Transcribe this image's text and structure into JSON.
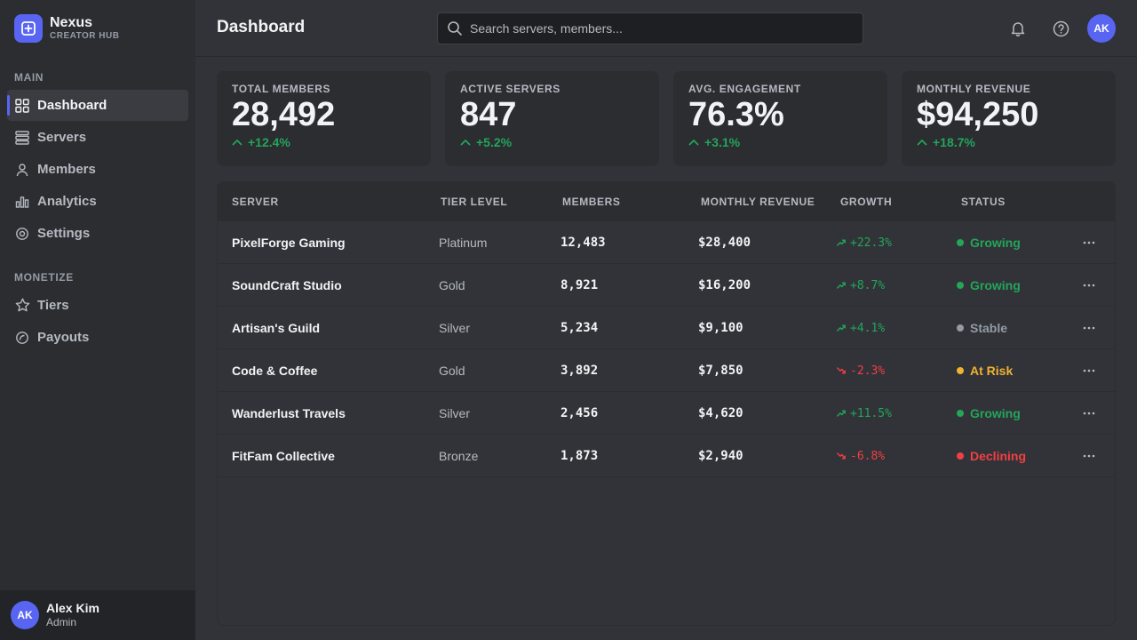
{
  "brand": {
    "name": "Nexus",
    "subtitle": "CREATOR HUB"
  },
  "sidebar": {
    "sections": [
      {
        "title": "MAIN",
        "items": [
          {
            "label": "Dashboard",
            "icon": "grid-icon",
            "active": true
          },
          {
            "label": "Servers",
            "icon": "server-icon"
          },
          {
            "label": "Members",
            "icon": "user-icon"
          },
          {
            "label": "Analytics",
            "icon": "bar-chart-icon"
          },
          {
            "label": "Settings",
            "icon": "gear-icon"
          }
        ]
      },
      {
        "title": "MONETIZE",
        "items": [
          {
            "label": "Tiers",
            "icon": "star-icon"
          },
          {
            "label": "Payouts",
            "icon": "payout-icon"
          }
        ]
      }
    ]
  },
  "user": {
    "initials": "AK",
    "name": "Alex Kim",
    "role": "Admin"
  },
  "header": {
    "title": "Dashboard",
    "search_placeholder": "Search servers, members...",
    "avatar_initials": "AK"
  },
  "stats": [
    {
      "label": "TOTAL MEMBERS",
      "value": "28,492",
      "change": "+12.4%"
    },
    {
      "label": "ACTIVE SERVERS",
      "value": "847",
      "change": "+5.2%"
    },
    {
      "label": "AVG. ENGAGEMENT",
      "value": "76.3%",
      "change": "+3.1%"
    },
    {
      "label": "MONTHLY REVENUE",
      "value": "$94,250",
      "change": "+18.7%"
    }
  ],
  "table": {
    "columns": [
      "SERVER",
      "TIER LEVEL",
      "MEMBERS",
      "MONTHLY REVENUE",
      "GROWTH",
      "STATUS"
    ],
    "rows": [
      {
        "server": "PixelForge Gaming",
        "tier": "Platinum",
        "members": "12,483",
        "revenue": "$28,400",
        "growth": "+22.3%",
        "trend": "up",
        "status": "Growing"
      },
      {
        "server": "SoundCraft Studio",
        "tier": "Gold",
        "members": "8,921",
        "revenue": "$16,200",
        "growth": "+8.7%",
        "trend": "up",
        "status": "Growing"
      },
      {
        "server": "Artisan's Guild",
        "tier": "Silver",
        "members": "5,234",
        "revenue": "$9,100",
        "growth": "+4.1%",
        "trend": "up",
        "status": "Stable"
      },
      {
        "server": "Code & Coffee",
        "tier": "Gold",
        "members": "3,892",
        "revenue": "$7,850",
        "growth": "-2.3%",
        "trend": "down",
        "status": "At Risk"
      },
      {
        "server": "Wanderlust Travels",
        "tier": "Silver",
        "members": "2,456",
        "revenue": "$4,620",
        "growth": "+11.5%",
        "trend": "up",
        "status": "Growing"
      },
      {
        "server": "FitFam Collective",
        "tier": "Bronze",
        "members": "1,873",
        "revenue": "$2,940",
        "growth": "-6.8%",
        "trend": "down",
        "status": "Declining"
      }
    ]
  },
  "colors": {
    "accent": "#5865f2",
    "positive": "#23a55a",
    "negative": "#f23f43",
    "warning": "#f0b232",
    "neutral": "#949ba4"
  }
}
